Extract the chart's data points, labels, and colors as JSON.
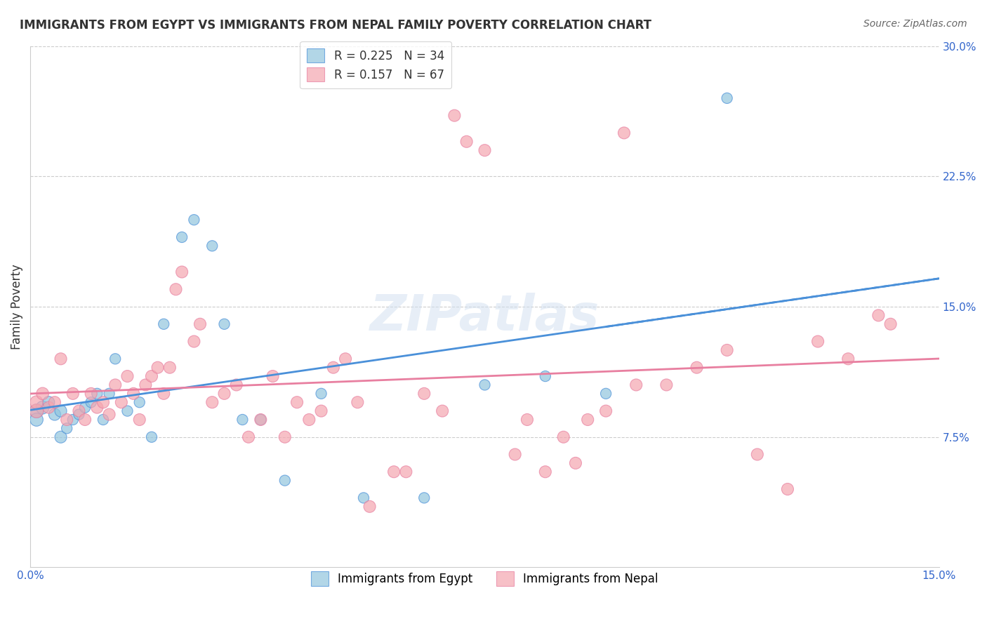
{
  "title": "IMMIGRANTS FROM EGYPT VS IMMIGRANTS FROM NEPAL FAMILY POVERTY CORRELATION CHART",
  "source": "Source: ZipAtlas.com",
  "xlabel_bottom": "",
  "ylabel": "Family Poverty",
  "xlim": [
    0.0,
    0.15
  ],
  "ylim": [
    0.0,
    0.3
  ],
  "xticks": [
    0.0,
    0.05,
    0.1,
    0.15
  ],
  "xtick_labels": [
    "0.0%",
    "",
    "",
    "15.0%"
  ],
  "ytick_labels_right": [
    "7.5%",
    "15.0%",
    "22.5%",
    "30.0%"
  ],
  "yticks_right": [
    0.075,
    0.15,
    0.225,
    0.3
  ],
  "egypt_color": "#92C5DE",
  "nepal_color": "#F4A6B0",
  "egypt_line_color": "#4A90D9",
  "nepal_line_color": "#E87FA0",
  "egypt_R": 0.225,
  "egypt_N": 34,
  "nepal_R": 0.157,
  "nepal_N": 67,
  "legend_R_label_egypt": "R = 0.225",
  "legend_N_label_egypt": "N = 34",
  "legend_R_label_nepal": "R = 0.157",
  "legend_N_label_nepal": "N = 67",
  "egypt_x": [
    0.001,
    0.001,
    0.002,
    0.003,
    0.004,
    0.005,
    0.005,
    0.006,
    0.007,
    0.008,
    0.009,
    0.01,
    0.011,
    0.012,
    0.013,
    0.014,
    0.016,
    0.018,
    0.02,
    0.022,
    0.025,
    0.027,
    0.03,
    0.032,
    0.035,
    0.038,
    0.042,
    0.048,
    0.055,
    0.065,
    0.075,
    0.085,
    0.095,
    0.115
  ],
  "egypt_y": [
    0.09,
    0.085,
    0.092,
    0.095,
    0.088,
    0.09,
    0.075,
    0.08,
    0.085,
    0.088,
    0.092,
    0.095,
    0.1,
    0.085,
    0.1,
    0.12,
    0.09,
    0.095,
    0.075,
    0.14,
    0.19,
    0.2,
    0.185,
    0.14,
    0.085,
    0.085,
    0.05,
    0.1,
    0.04,
    0.04,
    0.105,
    0.11,
    0.1,
    0.27
  ],
  "egypt_sizes": [
    200,
    180,
    180,
    150,
    150,
    150,
    150,
    120,
    120,
    120,
    120,
    120,
    120,
    120,
    120,
    120,
    120,
    120,
    120,
    120,
    120,
    120,
    120,
    120,
    120,
    120,
    120,
    120,
    120,
    120,
    120,
    120,
    120,
    120
  ],
  "nepal_x": [
    0.001,
    0.001,
    0.002,
    0.003,
    0.004,
    0.005,
    0.006,
    0.007,
    0.008,
    0.009,
    0.01,
    0.011,
    0.012,
    0.013,
    0.014,
    0.015,
    0.016,
    0.017,
    0.018,
    0.019,
    0.02,
    0.021,
    0.022,
    0.023,
    0.024,
    0.025,
    0.027,
    0.028,
    0.03,
    0.032,
    0.034,
    0.036,
    0.038,
    0.04,
    0.042,
    0.044,
    0.046,
    0.048,
    0.05,
    0.052,
    0.054,
    0.056,
    0.06,
    0.062,
    0.065,
    0.068,
    0.07,
    0.072,
    0.075,
    0.08,
    0.082,
    0.085,
    0.088,
    0.09,
    0.092,
    0.095,
    0.098,
    0.1,
    0.105,
    0.11,
    0.115,
    0.12,
    0.125,
    0.13,
    0.135,
    0.14,
    0.142
  ],
  "nepal_y": [
    0.09,
    0.095,
    0.1,
    0.092,
    0.095,
    0.12,
    0.085,
    0.1,
    0.09,
    0.085,
    0.1,
    0.092,
    0.095,
    0.088,
    0.105,
    0.095,
    0.11,
    0.1,
    0.085,
    0.105,
    0.11,
    0.115,
    0.1,
    0.115,
    0.16,
    0.17,
    0.13,
    0.14,
    0.095,
    0.1,
    0.105,
    0.075,
    0.085,
    0.11,
    0.075,
    0.095,
    0.085,
    0.09,
    0.115,
    0.12,
    0.095,
    0.035,
    0.055,
    0.055,
    0.1,
    0.09,
    0.26,
    0.245,
    0.24,
    0.065,
    0.085,
    0.055,
    0.075,
    0.06,
    0.085,
    0.09,
    0.25,
    0.105,
    0.105,
    0.115,
    0.125,
    0.065,
    0.045,
    0.13,
    0.12,
    0.145,
    0.14
  ],
  "nepal_sizes": [
    200,
    180,
    160,
    150,
    150,
    150,
    150,
    150,
    150,
    150,
    150,
    150,
    150,
    150,
    150,
    150,
    150,
    150,
    150,
    150,
    150,
    150,
    150,
    150,
    150,
    150,
    150,
    150,
    150,
    150,
    150,
    150,
    150,
    150,
    150,
    150,
    150,
    150,
    150,
    150,
    150,
    150,
    150,
    150,
    150,
    150,
    150,
    150,
    150,
    150,
    150,
    150,
    150,
    150,
    150,
    150,
    150,
    150,
    150,
    150,
    150,
    150,
    150,
    150,
    150,
    150,
    150
  ],
  "watermark": "ZIPatlas",
  "background_color": "#FFFFFF",
  "grid_color": "#CCCCCC"
}
